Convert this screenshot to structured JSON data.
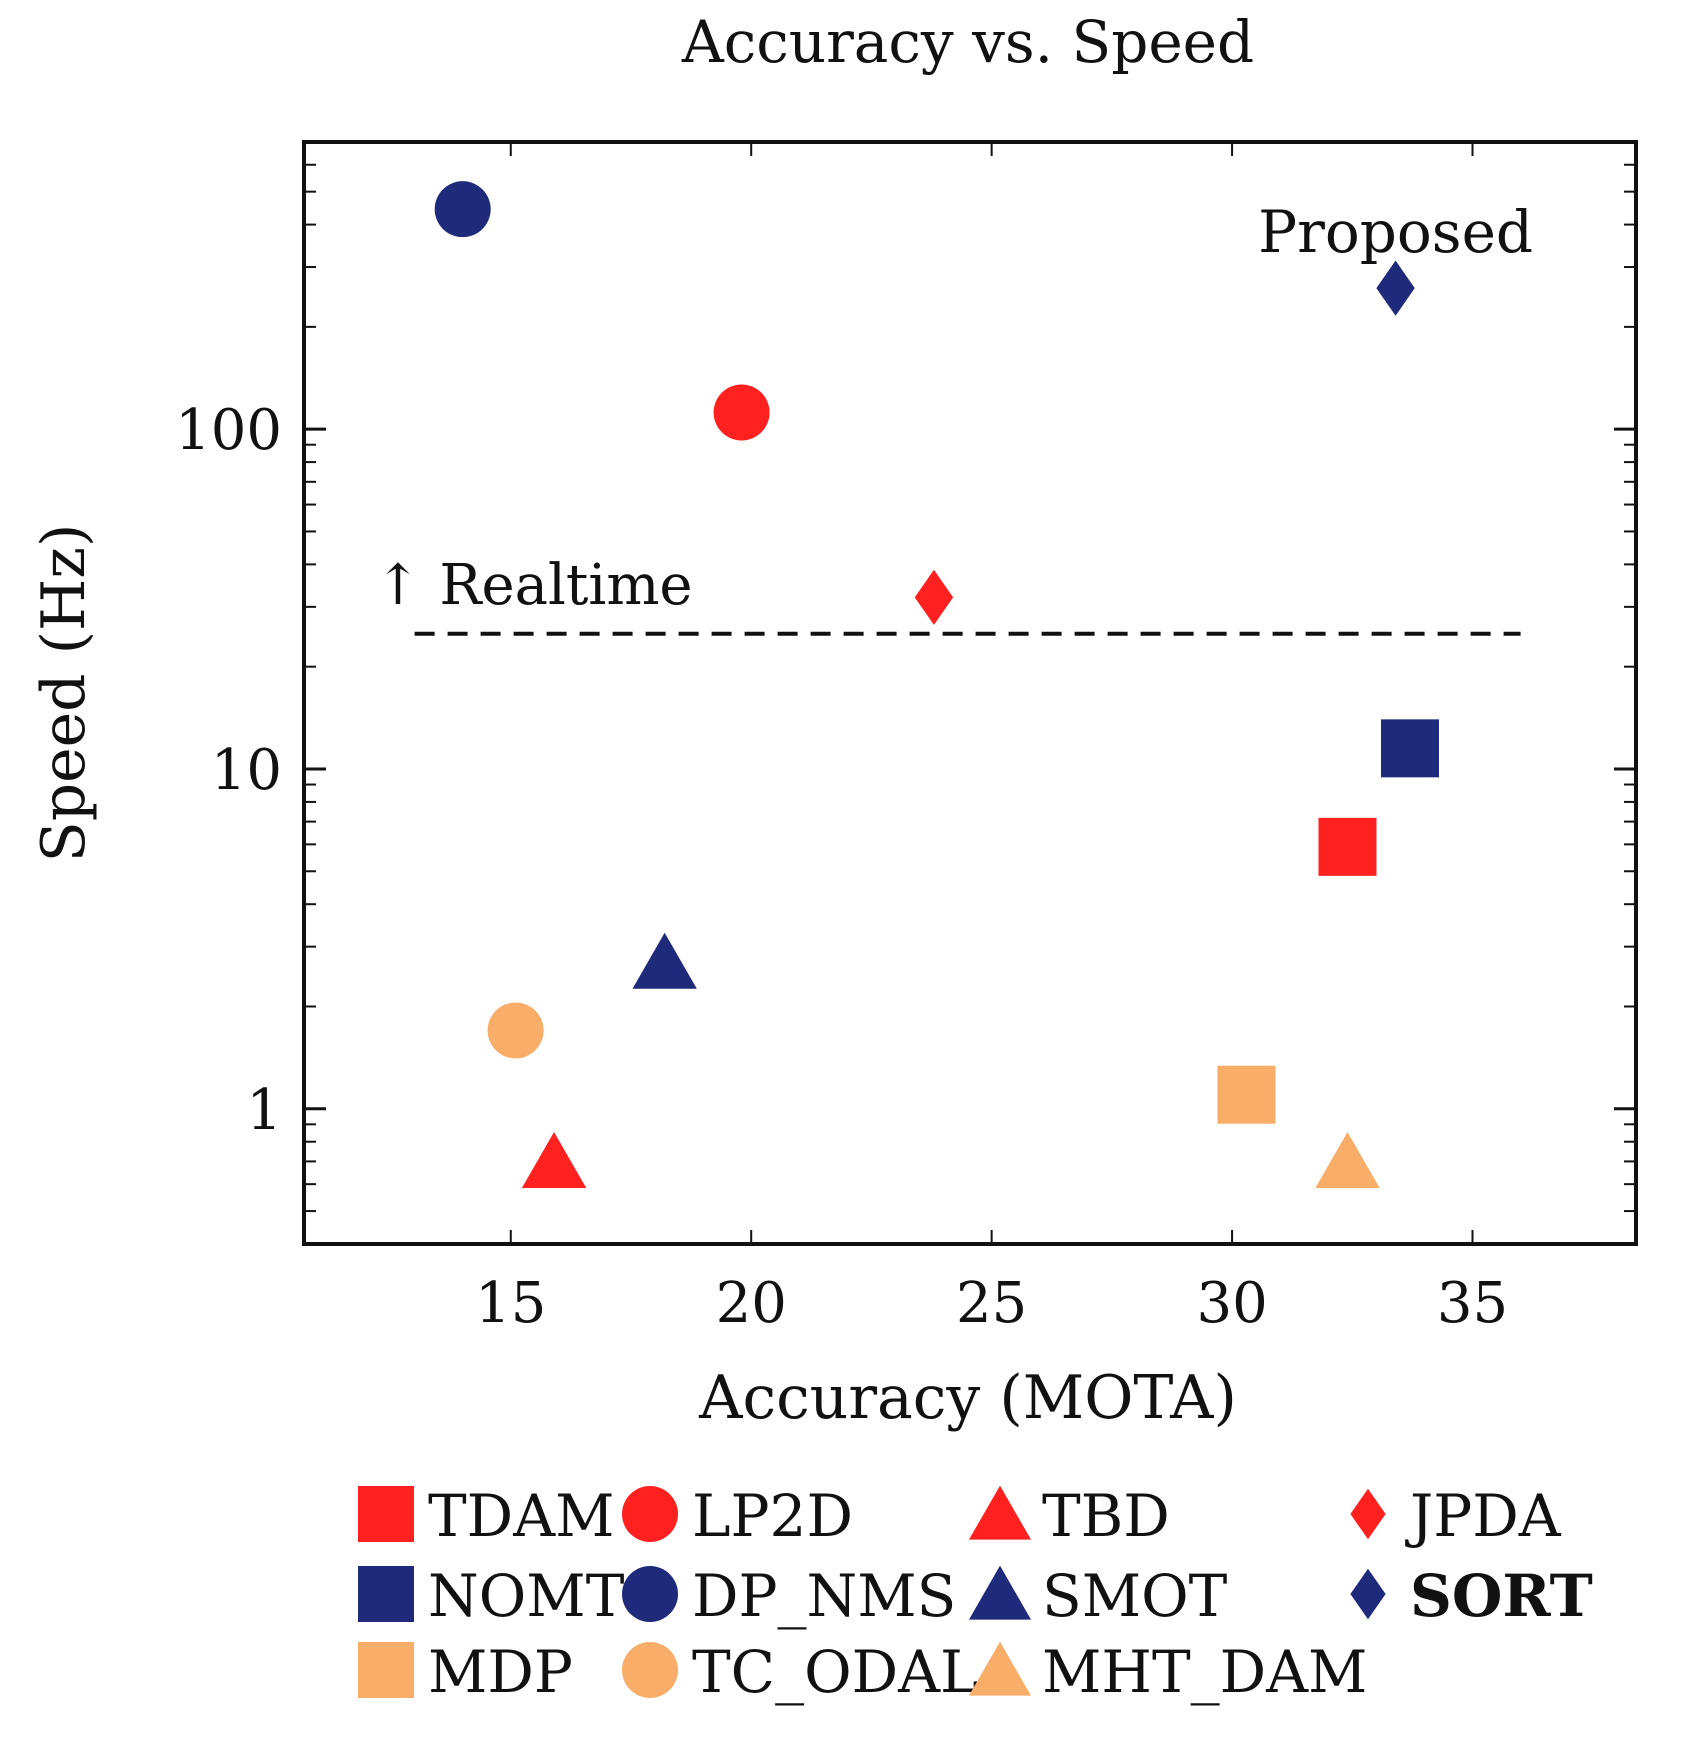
{
  "chart_data": {
    "type": "scatter",
    "title": "Accuracy vs. Speed",
    "xlabel": "Accuracy (MOTA)",
    "ylabel": "Speed (Hz)",
    "xlim": [
      10.7,
      38.4
    ],
    "ylim": [
      0.4,
      700
    ],
    "y_scale": "log",
    "x_ticks": [
      {
        "value": 15,
        "label": "15"
      },
      {
        "value": 20,
        "label": "20"
      },
      {
        "value": 25,
        "label": "25"
      },
      {
        "value": 30,
        "label": "30"
      },
      {
        "value": 35,
        "label": "35"
      }
    ],
    "y_ticks": [
      {
        "value": 1,
        "label": "1"
      },
      {
        "value": 10,
        "label": "10"
      },
      {
        "value": 100,
        "label": "100"
      }
    ],
    "grid": false,
    "legend_position": "bottom",
    "legend_columns": 4,
    "reference_line": {
      "y": 25,
      "x_start": 13,
      "x_end": 36,
      "style": "dashed",
      "label": "↑ Realtime"
    },
    "annotation": {
      "text": "Proposed",
      "x": 33.4,
      "y": 250
    },
    "series": [
      {
        "name": "TDAM",
        "marker": "square",
        "color": "#ff2020",
        "x": 32.4,
        "y": 5.9,
        "bold": false
      },
      {
        "name": "LP2D",
        "marker": "circle",
        "color": "#ff2020",
        "x": 19.8,
        "y": 112,
        "bold": false
      },
      {
        "name": "TBD",
        "marker": "triangle",
        "color": "#ff2020",
        "x": 15.9,
        "y": 0.7,
        "bold": false
      },
      {
        "name": "JPDA",
        "marker": "diamond",
        "color": "#ff2020",
        "x": 23.8,
        "y": 32,
        "bold": false
      },
      {
        "name": "NOMT",
        "marker": "square",
        "color": "#1f2a7a",
        "x": 33.7,
        "y": 11.5,
        "bold": false
      },
      {
        "name": "DP_NMS",
        "marker": "circle",
        "color": "#1f2a7a",
        "x": 14.0,
        "y": 444,
        "bold": false
      },
      {
        "name": "SMOT",
        "marker": "triangle",
        "color": "#1f2a7a",
        "x": 18.2,
        "y": 2.7,
        "bold": false
      },
      {
        "name": "SORT",
        "marker": "diamond",
        "color": "#1f2a7a",
        "x": 33.4,
        "y": 260,
        "bold": true
      },
      {
        "name": "MDP",
        "marker": "square",
        "color": "#f8ae68",
        "x": 30.3,
        "y": 1.1,
        "bold": false
      },
      {
        "name": "TC_ODAL",
        "marker": "circle",
        "color": "#f8ae68",
        "x": 15.1,
        "y": 1.7,
        "bold": false
      },
      {
        "name": "MHT_DAM",
        "marker": "triangle",
        "color": "#f8ae68",
        "x": 32.4,
        "y": 0.7,
        "bold": false
      }
    ]
  }
}
